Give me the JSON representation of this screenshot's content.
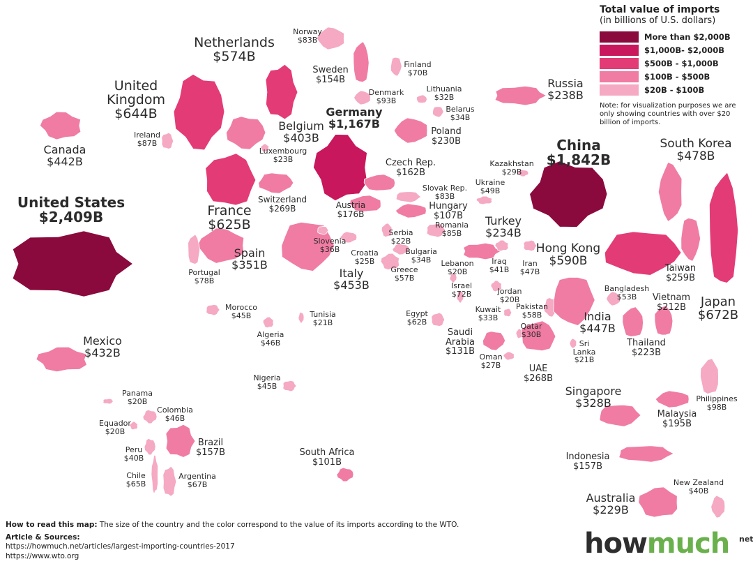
{
  "legend": {
    "title": "Total value of imports",
    "subtitle": "(in billions of U.S. dollars)",
    "items": [
      {
        "label": "More than $2,000B",
        "color": "#8b0a3d"
      },
      {
        "label": "$1,000B- $2,000B",
        "color": "#c8175c"
      },
      {
        "label": "$500B - $1,000B",
        "color": "#e33b76"
      },
      {
        "label": "$100B - $500B",
        "color": "#f07ca3"
      },
      {
        "label": "$20B - $100B",
        "color": "#f5a9c3"
      }
    ],
    "note": "Note: for visualization purposes we are only showing countries with over $20 billion of imports."
  },
  "countries": [
    {
      "name": "United States",
      "value": "$2,409B"
    },
    {
      "name": "China",
      "value": "$1,842B"
    },
    {
      "name": "Germany",
      "value": "$1,167B"
    },
    {
      "name": "Netherlands",
      "value": "$574B"
    },
    {
      "name": "United Kingdom",
      "value": "$644B"
    },
    {
      "name": "Canada",
      "value": "$442B"
    },
    {
      "name": "Ireland",
      "value": "$87B"
    },
    {
      "name": "Belgium",
      "value": "$403B"
    },
    {
      "name": "Luxembourg",
      "value": "$23B"
    },
    {
      "name": "France",
      "value": "$625B"
    },
    {
      "name": "Switzerland",
      "value": "$269B"
    },
    {
      "name": "Spain",
      "value": "$351B"
    },
    {
      "name": "Portugal",
      "value": "$78B"
    },
    {
      "name": "Italy",
      "value": "$453B"
    },
    {
      "name": "Norway",
      "value": "$83B"
    },
    {
      "name": "Sweden",
      "value": "$154B"
    },
    {
      "name": "Finland",
      "value": "$70B"
    },
    {
      "name": "Denmark",
      "value": "$93B"
    },
    {
      "name": "Lithuania",
      "value": "$32B"
    },
    {
      "name": "Belarus",
      "value": "$34B"
    },
    {
      "name": "Poland",
      "value": "$230B"
    },
    {
      "name": "Czech Rep.",
      "value": "$162B"
    },
    {
      "name": "Slovak Rep.",
      "value": "$83B"
    },
    {
      "name": "Hungary",
      "value": "$107B"
    },
    {
      "name": "Austria",
      "value": "$176B"
    },
    {
      "name": "Slovenia",
      "value": "$36B"
    },
    {
      "name": "Croatia",
      "value": "$25B"
    },
    {
      "name": "Serbia",
      "value": "$22B"
    },
    {
      "name": "Romania",
      "value": "$85B"
    },
    {
      "name": "Bulgaria",
      "value": "$34B"
    },
    {
      "name": "Greece",
      "value": "$57B"
    },
    {
      "name": "Russia",
      "value": "$238B"
    },
    {
      "name": "Kazakhstan",
      "value": "$29B"
    },
    {
      "name": "Ukraine",
      "value": "$49B"
    },
    {
      "name": "Turkey",
      "value": "$234B"
    },
    {
      "name": "Lebanon",
      "value": "$20B"
    },
    {
      "name": "Iraq",
      "value": "$41B"
    },
    {
      "name": "Iran",
      "value": "$47B"
    },
    {
      "name": "Israel",
      "value": "$72B"
    },
    {
      "name": "Jordan",
      "value": "$20B"
    },
    {
      "name": "Kuwait",
      "value": "$33B"
    },
    {
      "name": "Pakistan",
      "value": "$58B"
    },
    {
      "name": "Qatar",
      "value": "$30B"
    },
    {
      "name": "Egypt",
      "value": "$62B"
    },
    {
      "name": "Saudi Arabia",
      "value": "$131B"
    },
    {
      "name": "Oman",
      "value": "$27B"
    },
    {
      "name": "UAE",
      "value": "$268B"
    },
    {
      "name": "Hong Kong",
      "value": "$590B"
    },
    {
      "name": "South Korea",
      "value": "$478B"
    },
    {
      "name": "Japan",
      "value": "$672B"
    },
    {
      "name": "Taiwan",
      "value": "$259B"
    },
    {
      "name": "Bangladesh",
      "value": "$53B"
    },
    {
      "name": "Vietnam",
      "value": "$212B"
    },
    {
      "name": "India",
      "value": "$447B"
    },
    {
      "name": "Sri Lanka",
      "value": "$21B"
    },
    {
      "name": "Thailand",
      "value": "$223B"
    },
    {
      "name": "Singapore",
      "value": "$328B"
    },
    {
      "name": "Malaysia",
      "value": "$195B"
    },
    {
      "name": "Philippines",
      "value": "$98B"
    },
    {
      "name": "Indonesia",
      "value": "$157B"
    },
    {
      "name": "New Zealand",
      "value": "$40B"
    },
    {
      "name": "Australia",
      "value": "$229B"
    },
    {
      "name": "Morocco",
      "value": "$45B"
    },
    {
      "name": "Tunisia",
      "value": "$21B"
    },
    {
      "name": "Algeria",
      "value": "$46B"
    },
    {
      "name": "Nigeria",
      "value": "$45B"
    },
    {
      "name": "South Africa",
      "value": "$101B"
    },
    {
      "name": "Mexico",
      "value": "$432B"
    },
    {
      "name": "Panama",
      "value": "$20B"
    },
    {
      "name": "Colombia",
      "value": "$46B"
    },
    {
      "name": "Equador",
      "value": "$20B"
    },
    {
      "name": "Brazil",
      "value": "$157B"
    },
    {
      "name": "Peru",
      "value": "$40B"
    },
    {
      "name": "Chile",
      "value": "$65B"
    },
    {
      "name": "Argentina",
      "value": "$67B"
    }
  ],
  "footer": {
    "how_label": "How to read this map:",
    "how_text": "The size of the country and the color correspond to the value of its imports according to the WTO.",
    "sources_label": "Article & Sources:",
    "source_1": "https://howmuch.net/articles/largest-importing-countries-2017",
    "source_2": "https://www.wto.org"
  },
  "logo": {
    "brand_1": "how",
    "brand_2": "much",
    "suffix": "net"
  }
}
